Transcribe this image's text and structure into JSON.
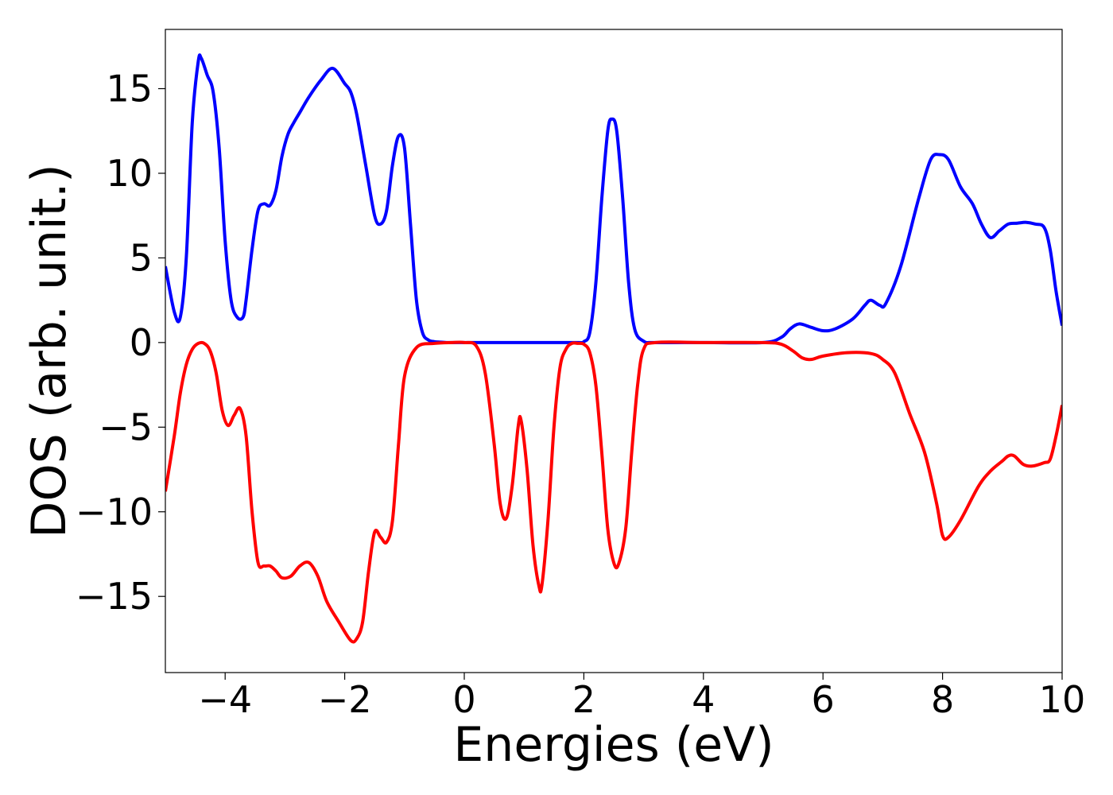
{
  "chart_data": {
    "type": "line",
    "title": "",
    "xlabel": "Energies (eV)",
    "ylabel": "DOS (arb. unit.)",
    "xlim": [
      -5,
      10
    ],
    "ylim": [
      -19.5,
      18.5
    ],
    "xticks": [
      -4,
      -2,
      0,
      2,
      4,
      6,
      8,
      10
    ],
    "xtick_labels": [
      "−4",
      "−2",
      "0",
      "2",
      "4",
      "6",
      "8",
      "10"
    ],
    "yticks": [
      15,
      10,
      5,
      0,
      -5,
      -10,
      -15
    ],
    "ytick_labels": [
      "15",
      "10",
      "5",
      "0",
      "−5",
      "−10",
      "−15"
    ],
    "grid": false,
    "legend": "none",
    "series": [
      {
        "color": "#0000ff",
        "x": [
          -5.0,
          -4.85,
          -4.75,
          -4.65,
          -4.55,
          -4.45,
          -4.4,
          -4.3,
          -4.2,
          -4.1,
          -4.0,
          -3.9,
          -3.8,
          -3.7,
          -3.65,
          -3.55,
          -3.45,
          -3.35,
          -3.25,
          -3.15,
          -3.05,
          -2.95,
          -2.85,
          -2.75,
          -2.6,
          -2.4,
          -2.2,
          -2.0,
          -1.9,
          -1.8,
          -1.65,
          -1.5,
          -1.4,
          -1.3,
          -1.2,
          -1.1,
          -1.0,
          -0.9,
          -0.8,
          -0.7,
          -0.6,
          -0.5,
          -0.4,
          -0.3,
          -0.2,
          0.0,
          0.5,
          1.0,
          1.5,
          1.9,
          2.0,
          2.1,
          2.2,
          2.3,
          2.4,
          2.47,
          2.55,
          2.65,
          2.75,
          2.85,
          3.0,
          3.2,
          4.0,
          5.0,
          5.3,
          5.45,
          5.6,
          5.8,
          6.0,
          6.2,
          6.5,
          6.7,
          6.8,
          6.95,
          7.05,
          7.3,
          7.6,
          7.8,
          7.95,
          8.1,
          8.3,
          8.5,
          8.65,
          8.8,
          8.95,
          9.1,
          9.25,
          9.4,
          9.55,
          9.7,
          9.8,
          9.9,
          10.0
        ],
        "y": [
          4.5,
          1.8,
          1.5,
          5.0,
          13.0,
          16.6,
          16.8,
          15.8,
          14.8,
          11.5,
          6.0,
          2.5,
          1.5,
          1.5,
          2.5,
          5.5,
          7.8,
          8.2,
          8.1,
          9.0,
          11.0,
          12.3,
          13.0,
          13.6,
          14.5,
          15.5,
          16.2,
          15.3,
          14.8,
          13.5,
          10.5,
          7.5,
          7.0,
          7.8,
          10.5,
          12.2,
          11.5,
          7.0,
          2.5,
          0.6,
          0.15,
          0.05,
          0.02,
          0.0,
          0.0,
          0.0,
          0.0,
          0.0,
          0.0,
          0.0,
          0.05,
          0.6,
          3.5,
          8.5,
          12.5,
          13.2,
          12.5,
          8.5,
          3.5,
          0.8,
          0.08,
          0.0,
          0.0,
          0.0,
          0.3,
          0.8,
          1.1,
          0.9,
          0.7,
          0.8,
          1.4,
          2.2,
          2.5,
          2.2,
          2.3,
          4.5,
          8.5,
          10.8,
          11.1,
          10.8,
          9.2,
          8.2,
          7.0,
          6.2,
          6.6,
          7.0,
          7.05,
          7.1,
          7.0,
          6.8,
          5.5,
          3.0,
          1.0
        ]
      },
      {
        "color": "#ff0000",
        "x": [
          -5.0,
          -4.85,
          -4.75,
          -4.65,
          -4.55,
          -4.45,
          -4.35,
          -4.25,
          -4.15,
          -4.05,
          -3.95,
          -3.85,
          -3.75,
          -3.65,
          -3.55,
          -3.45,
          -3.35,
          -3.25,
          -3.15,
          -3.05,
          -2.9,
          -2.75,
          -2.6,
          -2.45,
          -2.3,
          -2.1,
          -1.9,
          -1.8,
          -1.7,
          -1.6,
          -1.5,
          -1.4,
          -1.3,
          -1.2,
          -1.1,
          -1.0,
          -0.8,
          -0.5,
          -0.2,
          0.0,
          0.2,
          0.35,
          0.5,
          0.6,
          0.7,
          0.8,
          0.9,
          0.95,
          1.05,
          1.15,
          1.25,
          1.3,
          1.4,
          1.5,
          1.6,
          1.7,
          1.8,
          1.9,
          2.0,
          2.1,
          2.2,
          2.3,
          2.4,
          2.5,
          2.58,
          2.7,
          2.8,
          2.9,
          3.0,
          3.2,
          4.0,
          5.0,
          5.3,
          5.5,
          5.65,
          5.8,
          6.0,
          6.4,
          6.8,
          7.0,
          7.2,
          7.45,
          7.7,
          7.9,
          8.0,
          8.1,
          8.3,
          8.6,
          8.8,
          9.0,
          9.1,
          9.2,
          9.35,
          9.5,
          9.7,
          9.8,
          9.9,
          10.0
        ],
        "y": [
          -8.8,
          -5.5,
          -3.0,
          -1.3,
          -0.4,
          -0.05,
          -0.05,
          -0.5,
          -1.8,
          -4.0,
          -4.9,
          -4.3,
          -3.9,
          -5.5,
          -10.0,
          -13.0,
          -13.2,
          -13.2,
          -13.5,
          -13.9,
          -13.8,
          -13.2,
          -13.0,
          -13.8,
          -15.3,
          -16.5,
          -17.6,
          -17.5,
          -16.5,
          -13.5,
          -11.2,
          -11.5,
          -11.8,
          -10.5,
          -6.0,
          -2.0,
          -0.3,
          -0.05,
          0.0,
          0.0,
          -0.2,
          -1.8,
          -6.0,
          -9.5,
          -10.4,
          -8.5,
          -5.0,
          -4.6,
          -7.5,
          -12.0,
          -14.4,
          -14.3,
          -10.5,
          -5.0,
          -1.5,
          -0.4,
          -0.05,
          -0.05,
          -0.1,
          -0.6,
          -2.5,
          -6.5,
          -11.0,
          -13.0,
          -13.1,
          -11.0,
          -6.5,
          -2.5,
          -0.4,
          0.0,
          0.0,
          0.0,
          -0.1,
          -0.5,
          -0.9,
          -1.0,
          -0.8,
          -0.6,
          -0.65,
          -1.0,
          -1.8,
          -4.2,
          -6.5,
          -9.5,
          -11.4,
          -11.5,
          -10.5,
          -8.5,
          -7.6,
          -7.0,
          -6.7,
          -6.7,
          -7.2,
          -7.3,
          -7.1,
          -6.9,
          -5.5,
          -3.7
        ]
      }
    ]
  }
}
